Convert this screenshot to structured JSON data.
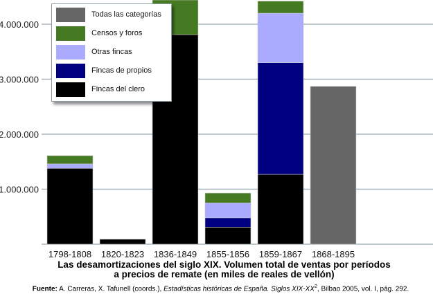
{
  "chart_data": {
    "type": "bar",
    "stacked": true,
    "title": "Las desamortizaciones del siglo XIX. Volumen total de ventas por períodos a precios de remate (en miles de reales de vellón)",
    "title_lines": [
      "Las desamortizaciones del siglo XIX. Volumen total de ventas por períodos",
      "a precios de remate (en miles de reales de vellón)"
    ],
    "categories": [
      "1798-1808",
      "1820-1823",
      "1836-1849",
      "1855-1856",
      "1859-1867",
      "1868-1895"
    ],
    "ytick_labels": [
      "1.000.000",
      "2.000.000",
      "3.000.000",
      "4.000.000"
    ],
    "yticks": [
      1000000,
      2000000,
      3000000,
      4000000
    ],
    "ylim": [
      0,
      4450000
    ],
    "grid": true,
    "legend_position": "top-left",
    "series": [
      {
        "name": "Fincas del clero",
        "color": "#000000",
        "values": [
          1380000,
          90000,
          3810000,
          310000,
          1270000,
          0
        ]
      },
      {
        "name": "Fincas de propios",
        "color": "#000080",
        "values": [
          0,
          0,
          0,
          170000,
          2030000,
          0
        ]
      },
      {
        "name": "Otras fincas",
        "color": "#aaaaff",
        "values": [
          80000,
          0,
          0,
          270000,
          900000,
          0
        ]
      },
      {
        "name": "Censos y foros",
        "color": "#467a22",
        "values": [
          150000,
          0,
          700000,
          180000,
          220000,
          0
        ]
      },
      {
        "name": "Todas las categorías",
        "color": "#666666",
        "values": [
          0,
          0,
          0,
          0,
          0,
          2870000
        ]
      }
    ],
    "legend_order": [
      4,
      3,
      2,
      1,
      0
    ]
  },
  "source": {
    "label": "Fuente:",
    "text1": " A. Carreras, X. Tafunell (coords.), ",
    "italic": "Estadísticas históricas de España. Siglos XIX-XX",
    "sup": "2",
    "text2": ", Bilbao 2005, vol. I, pág. 292."
  }
}
